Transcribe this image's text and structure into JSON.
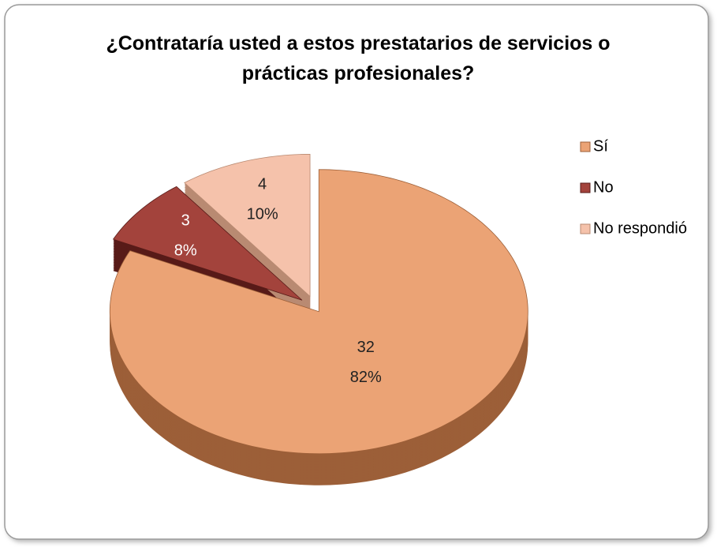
{
  "chart_data": {
    "type": "pie",
    "title": "¿Contrataría usted a estos prestatarios de servicios o prácticas profesionales?",
    "categories": [
      "Sí",
      "No",
      "No respondió"
    ],
    "values": [
      32,
      3,
      4
    ],
    "percent_labels": [
      "82%",
      "8%",
      "10%"
    ],
    "colors": [
      "#eba375",
      "#a3433c",
      "#f5c2ab"
    ],
    "side_colors": [
      "#9c5f38",
      "#581b18",
      "#b98a72"
    ],
    "label_colors": [
      "#222222",
      "#ffffff",
      "#222222"
    ],
    "legend": "right"
  }
}
